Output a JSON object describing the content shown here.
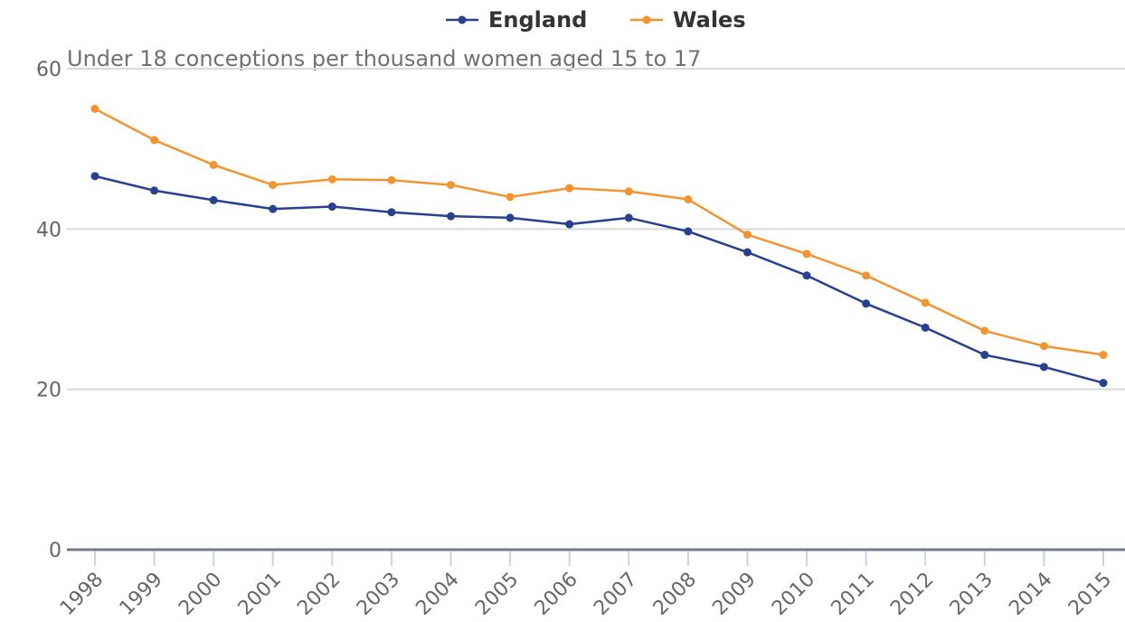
{
  "chart_data": {
    "type": "line",
    "title": "",
    "ylabel": "Under 18 conceptions per thousand women aged 15 to 17",
    "xlabel": "",
    "categories": [
      "1998",
      "1999",
      "2000",
      "2001",
      "2002",
      "2003",
      "2004",
      "2005",
      "2006",
      "2007",
      "2008",
      "2009",
      "2010",
      "2011",
      "2012",
      "2013",
      "2014",
      "2015"
    ],
    "ylim": [
      0,
      60
    ],
    "yticks": [
      0,
      20,
      40,
      60
    ],
    "grid": true,
    "legend_position": "top-center",
    "series": [
      {
        "name": "England",
        "color": "#27408f",
        "values": [
          46.6,
          44.8,
          43.6,
          42.5,
          42.8,
          42.1,
          41.6,
          41.4,
          40.6,
          41.4,
          39.7,
          37.1,
          34.2,
          30.7,
          27.7,
          24.3,
          22.8,
          20.8
        ]
      },
      {
        "name": "Wales",
        "color": "#f39431",
        "values": [
          55.0,
          51.1,
          48.0,
          45.5,
          46.2,
          46.1,
          45.5,
          44.0,
          45.1,
          44.7,
          43.7,
          39.3,
          36.9,
          34.2,
          30.8,
          27.3,
          25.4,
          24.3
        ]
      }
    ]
  }
}
